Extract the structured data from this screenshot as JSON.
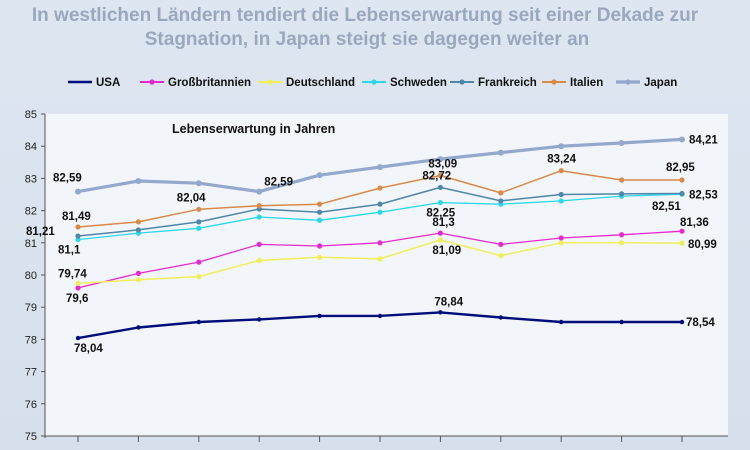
{
  "title_line1": "In westlichen Ländern tendiert die Lebenserwartung seit einer Dekade zur",
  "title_line2": "Stagnation, in Japan steigt sie dagegen weiter an",
  "chart_data": {
    "type": "line",
    "subtitle": "Lebenserwartung in Jahren",
    "ylim": [
      75,
      85
    ],
    "yticks": [
      "75",
      "76",
      "77",
      "78",
      "79",
      "80",
      "81",
      "82",
      "83",
      "84",
      "85"
    ],
    "x": [
      1,
      2,
      3,
      4,
      5,
      6,
      7,
      8,
      9,
      10,
      11
    ],
    "grid": false,
    "legend_position": "top",
    "series": [
      {
        "name": "USA",
        "color": "#000e7a",
        "width": 2.4,
        "values": [
          78.04,
          78.37,
          78.54,
          78.62,
          78.73,
          78.73,
          78.84,
          78.68,
          78.54,
          78.54,
          78.54
        ],
        "labels": [
          [
            0,
            "78,04"
          ],
          [
            6,
            "78,84"
          ],
          [
            10,
            "78,54"
          ]
        ]
      },
      {
        "name": "Großbritannien",
        "color": "#e62ad0",
        "width": 1.3,
        "values": [
          79.6,
          80.05,
          80.4,
          80.95,
          80.9,
          81.0,
          81.3,
          80.95,
          81.15,
          81.25,
          81.36
        ],
        "labels": [
          [
            0,
            "79,6"
          ],
          [
            6,
            "81,3"
          ],
          [
            10,
            "81,36"
          ]
        ]
      },
      {
        "name": "Deutschland",
        "color": "#f0ee5a",
        "width": 1.5,
        "values": [
          79.74,
          79.85,
          79.95,
          80.45,
          80.55,
          80.5,
          81.09,
          80.6,
          81.0,
          81.0,
          80.99
        ],
        "labels": [
          [
            0,
            "79,74"
          ],
          [
            6,
            "81,09"
          ],
          [
            10,
            "80,99"
          ]
        ]
      },
      {
        "name": "Schweden",
        "color": "#2ad8e8",
        "width": 1.3,
        "values": [
          81.1,
          81.3,
          81.45,
          81.8,
          81.7,
          81.95,
          82.25,
          82.2,
          82.3,
          82.45,
          82.51
        ],
        "labels": [
          [
            0,
            "81,1"
          ],
          [
            6,
            "82,25"
          ],
          [
            10,
            "82,51"
          ]
        ]
      },
      {
        "name": "Frankreich",
        "color": "#4f87a8",
        "width": 1.5,
        "values": [
          81.21,
          81.4,
          81.65,
          82.05,
          81.95,
          82.2,
          82.72,
          82.3,
          82.5,
          82.52,
          82.53
        ],
        "labels": [
          [
            0,
            "81,21"
          ],
          [
            6,
            "82,72"
          ],
          [
            10,
            "82,53"
          ]
        ]
      },
      {
        "name": "Italien",
        "color": "#d88a48",
        "width": 1.5,
        "values": [
          81.49,
          81.65,
          82.04,
          82.15,
          82.2,
          82.7,
          83.09,
          82.55,
          83.24,
          82.95,
          82.95
        ],
        "labels": [
          [
            0,
            "81,49"
          ],
          [
            2,
            "82,04"
          ],
          [
            6,
            "83,09"
          ],
          [
            8,
            "83,24"
          ],
          [
            10,
            "82,95"
          ]
        ]
      },
      {
        "name": "Japan",
        "color": "#93a8cc",
        "width": 3.2,
        "values": [
          82.59,
          82.92,
          82.85,
          82.59,
          83.1,
          83.35,
          83.6,
          83.8,
          84.0,
          84.1,
          84.21
        ],
        "labels": [
          [
            0,
            "82,59"
          ],
          [
            3,
            "82,59"
          ],
          [
            10,
            "84,21"
          ]
        ]
      }
    ]
  }
}
